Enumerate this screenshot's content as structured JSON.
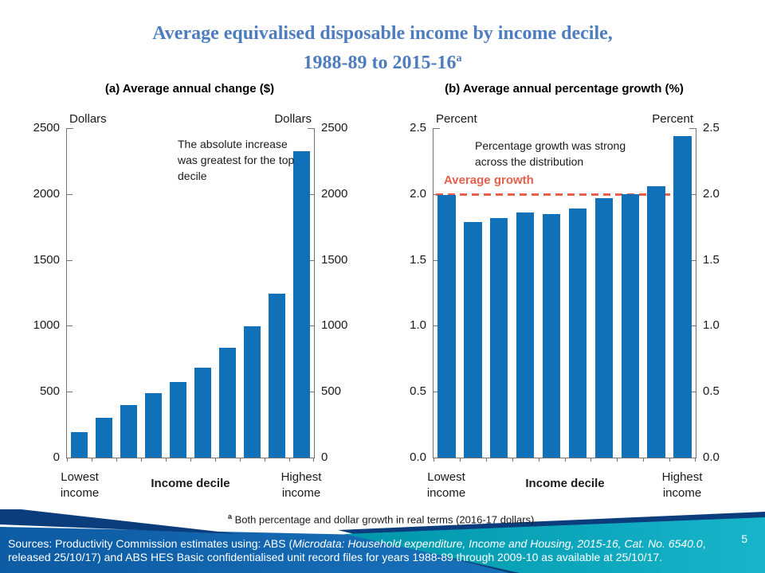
{
  "slide": {
    "title_line1": "Average equivalised disposable income by income decile,",
    "title_line2": "1988-89 to 2015-16",
    "title_footnote_marker": "a",
    "page_number": "5"
  },
  "footnote": {
    "marker": "a",
    "text": " Both percentage and dollar growth in real terms (2016-17 dollars)."
  },
  "footer": {
    "sources_prefix": "Sources: Productivity Commission estimates using: ABS (",
    "sources_italic": "Microdata: Household expenditure, Income and Housing, 2015-16, Cat. No. 6540.0",
    "sources_suffix": ", released 25/10/17) and ABS HES Basic confidentialised unit record files for years 1988-89 through 2009-10 as available at 25/10/17."
  },
  "colors": {
    "title_blue": "#4d7dbe",
    "bar_blue": "#1070b8",
    "accent_red": "#e8604c",
    "axis_gray": "#737373",
    "footer_navy": "#0b3d7c",
    "footer_blue_left": "#0d5ba3",
    "footer_blue_right": "#1e7cc5",
    "footer_teal_left": "#0096ab",
    "footer_teal_right": "#17b4ca"
  },
  "chart_data": [
    {
      "type": "bar",
      "title": "(a) Average annual change ($)",
      "unit_left": "Dollars",
      "unit_right": "Dollars",
      "x_first_label": "Lowest income",
      "x_axis_title": "Income decile",
      "x_last_label": "Highest income",
      "categories": [
        "Decile 1 (lowest)",
        "Decile 2",
        "Decile 3",
        "Decile 4",
        "Decile 5",
        "Decile 6",
        "Decile 7",
        "Decile 8",
        "Decile 9",
        "Decile 10 (highest)"
      ],
      "values": [
        195,
        305,
        400,
        490,
        575,
        680,
        835,
        995,
        1245,
        2325
      ],
      "ylim": [
        0,
        2500
      ],
      "ytick_labels": [
        "0",
        "500",
        "1000",
        "1500",
        "2000",
        "2500"
      ],
      "grid": false,
      "legend": null,
      "annotation": "The absolute increase was greatest for the top decile"
    },
    {
      "type": "bar",
      "title": "(b) Average annual percentage growth (%)",
      "unit_left": "Percent",
      "unit_right": "Percent",
      "x_first_label": "Lowest income",
      "x_axis_title": "Income decile",
      "x_last_label": "Highest income",
      "categories": [
        "Decile 1 (lowest)",
        "Decile 2",
        "Decile 3",
        "Decile 4",
        "Decile 5",
        "Decile 6",
        "Decile 7",
        "Decile 8",
        "Decile 9",
        "Decile 10 (highest)"
      ],
      "values": [
        1.99,
        1.79,
        1.82,
        1.86,
        1.85,
        1.89,
        1.97,
        2.0,
        2.06,
        2.44
      ],
      "ylim": [
        0,
        2.5
      ],
      "ytick_labels": [
        "0.0",
        "0.5",
        "1.0",
        "1.5",
        "2.0",
        "2.5"
      ],
      "grid": false,
      "legend": null,
      "annotation": "Percentage growth was strong across the distribution",
      "reference_line": {
        "label": "Average growth",
        "value": 2.0,
        "style": "dashed"
      }
    }
  ]
}
